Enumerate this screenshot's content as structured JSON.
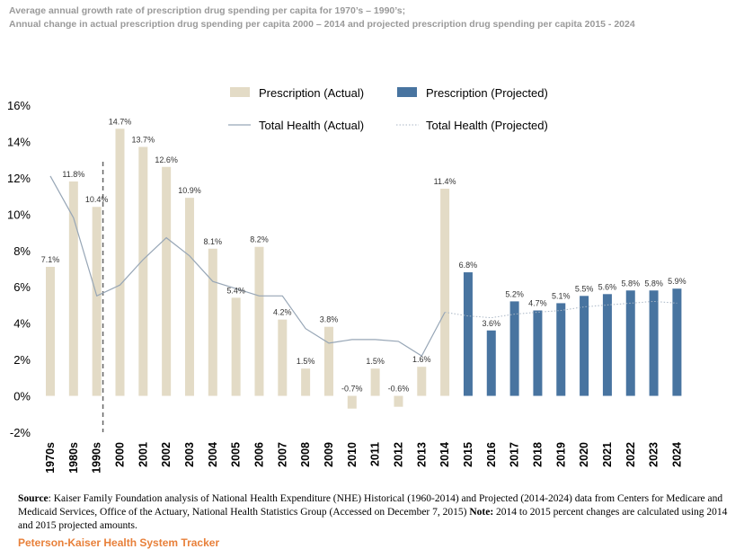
{
  "header": {
    "subtitle_line1": "Average annual growth rate of prescription drug spending per capita for 1970’s – 1990’s;",
    "subtitle_line2": "Annual change in actual prescription drug spending per capita 2000 – 2014 and projected prescription drug spending per capita 2015 - 2024"
  },
  "chart_data": {
    "type": "bar",
    "title": "",
    "xlabel": "",
    "ylabel": "",
    "ylim": [
      -2,
      16
    ],
    "yticks": [
      "-2%",
      "0%",
      "2%",
      "4%",
      "6%",
      "8%",
      "10%",
      "12%",
      "14%",
      "16%"
    ],
    "grid": false,
    "legend_position": "top",
    "categories": [
      "1970s",
      "1980s",
      "1990s",
      "2000",
      "2001",
      "2002",
      "2003",
      "2004",
      "2005",
      "2006",
      "2007",
      "2008",
      "2009",
      "2010",
      "2011",
      "2012",
      "2013",
      "2014",
      "2015",
      "2016",
      "2017",
      "2018",
      "2019",
      "2020",
      "2021",
      "2022",
      "2023",
      "2024"
    ],
    "value_labels": [
      "7.1%",
      "11.8%",
      "10.4%",
      "14.7%",
      "13.7%",
      "12.6%",
      "10.9%",
      "8.1%",
      "5.4%",
      "8.2%",
      "4.2%",
      "1.5%",
      "3.8%",
      "-0.7%",
      "1.5%",
      "-0.6%",
      "1.6%",
      "11.4%",
      "6.8%",
      "3.6%",
      "5.2%",
      "4.7%",
      "5.1%",
      "5.5%",
      "5.6%",
      "5.8%",
      "5.8%",
      "5.9%"
    ],
    "series": [
      {
        "name": "Prescription (Actual)",
        "kind": "bar",
        "color": "#e3dbc6",
        "values": [
          7.1,
          11.8,
          10.4,
          14.7,
          13.7,
          12.6,
          10.9,
          8.1,
          5.4,
          8.2,
          4.2,
          1.5,
          3.8,
          -0.7,
          1.5,
          -0.6,
          1.6,
          11.4,
          null,
          null,
          null,
          null,
          null,
          null,
          null,
          null,
          null,
          null
        ]
      },
      {
        "name": "Prescription (Projected)",
        "kind": "bar",
        "color": "#4874a0",
        "values": [
          null,
          null,
          null,
          null,
          null,
          null,
          null,
          null,
          null,
          null,
          null,
          null,
          null,
          null,
          null,
          null,
          null,
          null,
          6.8,
          3.6,
          5.2,
          4.7,
          5.1,
          5.5,
          5.6,
          5.8,
          5.8,
          5.9
        ]
      },
      {
        "name": "Total Health (Actual)",
        "kind": "line",
        "color": "#97a6b6",
        "values": [
          12.1,
          9.8,
          5.5,
          6.1,
          7.5,
          8.7,
          7.7,
          6.3,
          5.9,
          5.5,
          5.5,
          3.7,
          2.9,
          3.1,
          3.1,
          3.0,
          2.2,
          4.6,
          null,
          null,
          null,
          null,
          null,
          null,
          null,
          null,
          null,
          null
        ]
      },
      {
        "name": "Total Health (Projected)",
        "kind": "dotted-line",
        "color": "#a9b6c5",
        "values": [
          null,
          null,
          null,
          null,
          null,
          null,
          null,
          null,
          null,
          null,
          null,
          null,
          null,
          null,
          null,
          null,
          null,
          4.6,
          4.4,
          4.3,
          4.5,
          4.6,
          4.7,
          4.9,
          5.0,
          5.1,
          5.2,
          5.1
        ]
      }
    ],
    "annotations": [
      {
        "type": "dashed-vertical-divider",
        "after_category": "1990s"
      }
    ]
  },
  "footer": {
    "source_label": "Source",
    "source_text": ": Kaiser Family Foundation analysis of National Health Expenditure (NHE) Historical (1960-2014) and Projected (2014-2024) data from Centers for Medicare and Medicaid Services, Office of the Actuary, National Health Statistics Group (Accessed on December 7, 2015) ",
    "note_label": "Note:",
    "note_text": " 2014 to 2015 percent changes are calculated using 2014 and 2015 projected amounts.",
    "brand": "Peterson-Kaiser Health System Tracker"
  }
}
